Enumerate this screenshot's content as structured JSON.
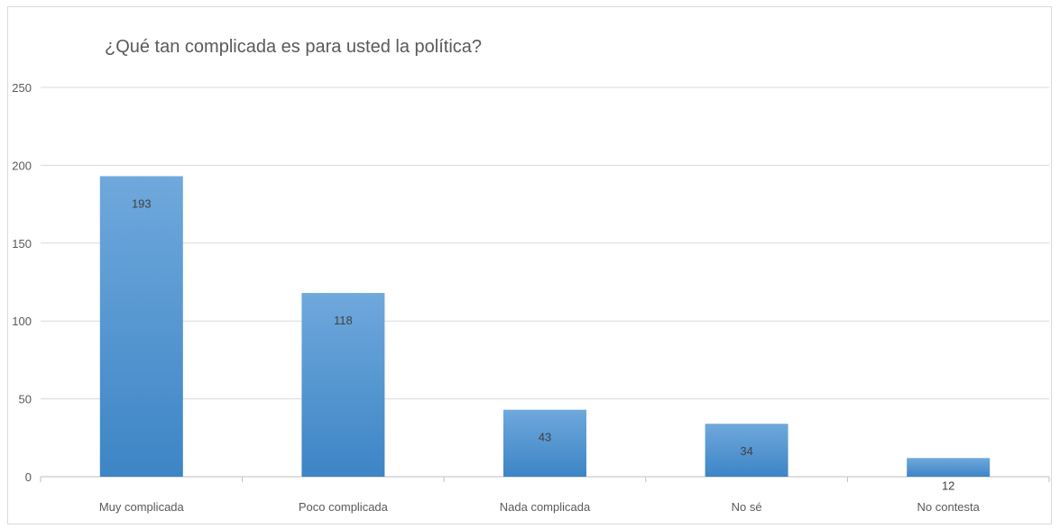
{
  "chart_data": {
    "type": "bar",
    "title": "¿Qué tan complicada es para usted la política?",
    "xlabel": "",
    "ylabel": "",
    "categories": [
      "Muy complicada",
      "Poco complicada",
      "Nada complicada",
      "No sé",
      "No contesta"
    ],
    "values": [
      193,
      118,
      43,
      34,
      12
    ],
    "ylim": [
      0,
      250
    ],
    "yticks": [
      0,
      50,
      100,
      150,
      200,
      250
    ],
    "grid": true,
    "legend": "none",
    "bar_color_light": "#6fa8dc",
    "bar_color_dark": "#3d85c6",
    "data_labels": true
  }
}
